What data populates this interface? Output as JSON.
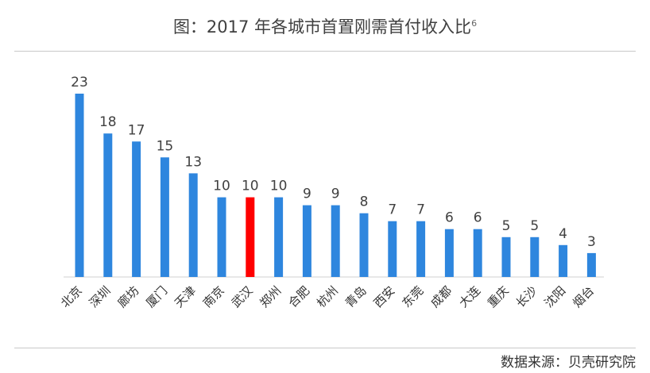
{
  "chart_data": {
    "type": "bar",
    "title": "图：2017 年各城市首置刚需首付收入比",
    "title_superscript": "6",
    "categories": [
      "北京",
      "深圳",
      "廊坊",
      "厦门",
      "天津",
      "南京",
      "武汉",
      "郑州",
      "合肥",
      "杭州",
      "青岛",
      "西安",
      "东莞",
      "成都",
      "大连",
      "重庆",
      "长沙",
      "沈阳",
      "烟台"
    ],
    "values": [
      23,
      18,
      17,
      15,
      13,
      10,
      10,
      10,
      9,
      9,
      8,
      7,
      7,
      6,
      6,
      5,
      5,
      4,
      3
    ],
    "highlight_category": "武汉",
    "colors": {
      "bar": "#2e86de",
      "highlight": "#ff0000"
    },
    "data_labels": true,
    "grid": false,
    "legend": "none",
    "ylim": [
      0,
      23
    ],
    "source": "数据来源：贝壳研究院"
  }
}
